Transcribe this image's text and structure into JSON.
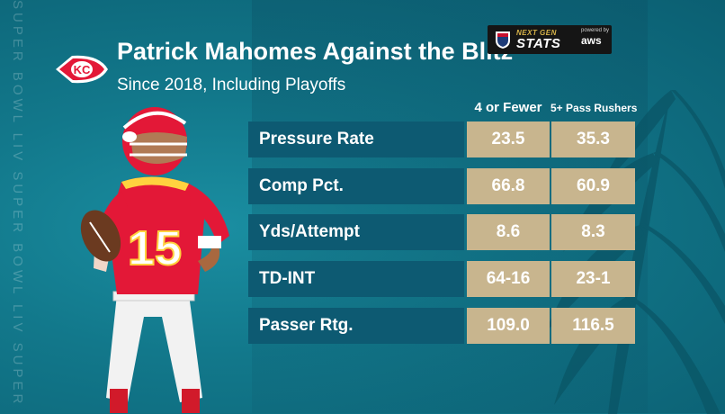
{
  "watermark": "SUPER BOWL LIV SUPER BOWL LIV SUPER BOWL LIV",
  "header": {
    "title": "Patrick Mahomes Against the Blitz",
    "subtitle": "Since 2018, Including Playoffs"
  },
  "branding": {
    "ngs_top": "NEXT GEN",
    "ngs_main": "STATS",
    "powered_by": "powered by",
    "aws": "aws"
  },
  "table": {
    "columns": [
      "4 or Fewer",
      "5+ Pass Rushers"
    ],
    "rows": [
      {
        "label": "Pressure Rate",
        "values": [
          "23.5",
          "35.3"
        ]
      },
      {
        "label": "Comp Pct.",
        "values": [
          "66.8",
          "60.9"
        ]
      },
      {
        "label": "Yds/Attempt",
        "values": [
          "8.6",
          "8.3"
        ]
      },
      {
        "label": "TD-INT",
        "values": [
          "64-16",
          "23-1"
        ]
      },
      {
        "label": "Passer Rtg.",
        "values": [
          "109.0",
          "116.5"
        ]
      }
    ]
  },
  "player": {
    "jersey_number": "15"
  },
  "colors": {
    "background": "#12788b",
    "label_bar": "#0d5a72",
    "value_box": "#c8b58e",
    "chiefs_red": "#e31837"
  },
  "icons": [
    "chiefs-logo-icon",
    "nfl-shield-icon",
    "palm-leaves-icon"
  ]
}
